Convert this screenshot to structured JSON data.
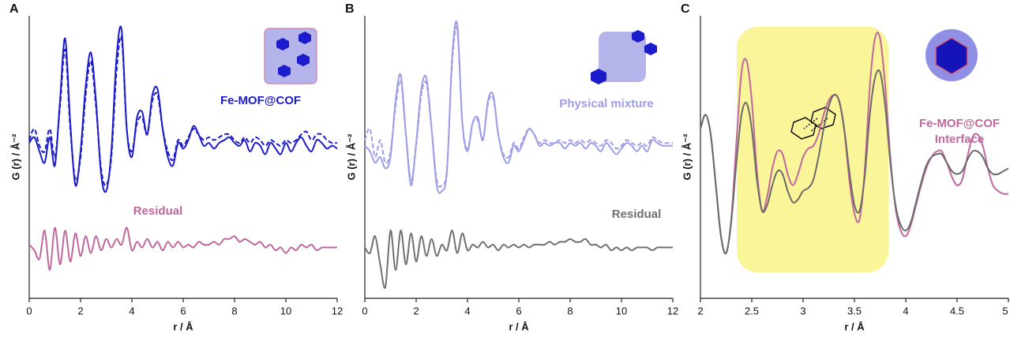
{
  "chart_data": [
    {
      "type": "line",
      "panel": "A",
      "ylabel": "G (r) / Å⁻²",
      "xlabel": "r / Å",
      "xlim": [
        0,
        12
      ],
      "xticks": [
        0,
        2,
        4,
        6,
        8,
        10,
        12
      ],
      "ylim": [
        0,
        100
      ],
      "x": [
        0,
        0.2,
        0.4,
        0.6,
        0.8,
        1,
        1.2,
        1.4,
        1.6,
        1.8,
        2,
        2.2,
        2.4,
        2.6,
        2.8,
        3,
        3.2,
        3.4,
        3.6,
        3.8,
        4,
        4.2,
        4.4,
        4.6,
        4.8,
        5,
        5.2,
        5.4,
        5.6,
        5.8,
        6,
        6.2,
        6.4,
        6.6,
        6.8,
        7,
        7.2,
        7.4,
        7.6,
        7.8,
        8,
        8.2,
        8.4,
        8.6,
        8.8,
        9,
        9.2,
        9.4,
        9.6,
        9.8,
        10,
        10.2,
        10.4,
        10.6,
        10.8,
        11,
        11.2,
        11.4,
        11.6,
        11.8,
        12
      ],
      "series": [
        {
          "name": "Fe-MOF@COF",
          "color": "#1c1ccc",
          "dash": false,
          "values": [
            55,
            57,
            52,
            48,
            57,
            47,
            70,
            92,
            62,
            40,
            52,
            75,
            87,
            70,
            44,
            38,
            52,
            85,
            95,
            60,
            50,
            64,
            66,
            58,
            72,
            74,
            60,
            50,
            47,
            55,
            53,
            56,
            61,
            58,
            54,
            55,
            53,
            55,
            56,
            57,
            55,
            54,
            56,
            52,
            55,
            54,
            51,
            55,
            53,
            51,
            55,
            52,
            55,
            57,
            54,
            52,
            56,
            55,
            53,
            54,
            53
          ]
        },
        {
          "color": "#1c1ccc",
          "dash": true,
          "values": [
            56,
            60,
            54,
            52,
            60,
            50,
            68,
            88,
            60,
            42,
            50,
            72,
            84,
            68,
            46,
            40,
            50,
            80,
            92,
            60,
            52,
            62,
            64,
            58,
            70,
            72,
            60,
            52,
            49,
            56,
            54,
            57,
            60,
            58,
            56,
            57,
            56,
            57,
            58,
            58,
            56,
            55,
            57,
            55,
            57,
            56,
            54,
            56,
            55,
            54,
            56,
            55,
            56,
            58,
            59,
            56,
            58,
            58,
            56,
            55,
            55
          ]
        },
        {
          "name": "Residual",
          "color": "#c0679d",
          "dash": false,
          "values": [
            19,
            17,
            14,
            24,
            10,
            25,
            12,
            24,
            13,
            23,
            15,
            22,
            16,
            22,
            17,
            21,
            18,
            21,
            19,
            25,
            17,
            20,
            18,
            21,
            18,
            20,
            17,
            20,
            18,
            20,
            18,
            19,
            18,
            20,
            19,
            19,
            20,
            19,
            21,
            21,
            22,
            20,
            21,
            20,
            19,
            20,
            18,
            19,
            17,
            18,
            16,
            18,
            17,
            19,
            18,
            19,
            17,
            18,
            18,
            18,
            18
          ]
        }
      ]
    },
    {
      "type": "line",
      "panel": "B",
      "ylabel": "G (r) / Å⁻²",
      "xlabel": "r / Å",
      "xlim": [
        0,
        12
      ],
      "xticks": [
        0,
        2,
        4,
        6,
        8,
        10,
        12
      ],
      "ylim": [
        0,
        100
      ],
      "x": [
        0,
        0.2,
        0.4,
        0.6,
        0.8,
        1,
        1.2,
        1.4,
        1.6,
        1.8,
        2,
        2.2,
        2.4,
        2.6,
        2.8,
        3,
        3.2,
        3.4,
        3.6,
        3.8,
        4,
        4.2,
        4.4,
        4.6,
        4.8,
        5,
        5.2,
        5.4,
        5.6,
        5.8,
        6,
        6.2,
        6.4,
        6.6,
        6.8,
        7,
        7.2,
        7.4,
        7.6,
        7.8,
        8,
        8.2,
        8.4,
        8.6,
        8.8,
        9,
        9.2,
        9.4,
        9.6,
        9.8,
        10,
        10.2,
        10.4,
        10.6,
        10.8,
        11,
        11.2,
        11.4,
        11.6,
        11.8,
        12
      ],
      "series": [
        {
          "name": "Physical mixture",
          "color": "#9d9de8",
          "dash": false,
          "values": [
            54,
            52,
            48,
            50,
            46,
            50,
            70,
            79,
            58,
            40,
            55,
            74,
            78,
            60,
            40,
            38,
            45,
            85,
            97,
            62,
            52,
            62,
            64,
            56,
            70,
            72,
            58,
            50,
            48,
            54,
            52,
            56,
            60,
            58,
            54,
            55,
            54,
            55,
            55,
            53,
            55,
            54,
            55,
            53,
            55,
            54,
            52,
            55,
            53,
            51,
            53,
            55,
            54,
            52,
            54,
            52,
            56,
            55,
            54,
            54,
            54
          ]
        },
        {
          "color": "#9d9de8",
          "dash": true,
          "values": [
            56,
            60,
            50,
            56,
            48,
            52,
            68,
            77,
            58,
            42,
            54,
            72,
            76,
            60,
            42,
            40,
            46,
            83,
            95,
            62,
            53,
            62,
            63,
            56,
            69,
            71,
            58,
            51,
            50,
            55,
            53,
            57,
            60,
            58,
            55,
            56,
            55,
            55,
            56,
            55,
            56,
            55,
            56,
            55,
            56,
            55,
            54,
            56,
            55,
            53,
            54,
            56,
            55,
            54,
            55,
            54,
            57,
            56,
            55,
            55,
            55
          ]
        },
        {
          "name": "Residual",
          "color": "#707070",
          "dash": false,
          "values": [
            18,
            16,
            22,
            12,
            4,
            24,
            10,
            24,
            12,
            23,
            13,
            22,
            15,
            21,
            15,
            19,
            17,
            24,
            16,
            23,
            17,
            19,
            18,
            20,
            18,
            19,
            17,
            19,
            18,
            19,
            18,
            19,
            18,
            19,
            19,
            19,
            20,
            19,
            20,
            20,
            21,
            20,
            20,
            21,
            19,
            19,
            18,
            19,
            17,
            18,
            17,
            18,
            17,
            18,
            18,
            18,
            17,
            18,
            18,
            18,
            18
          ]
        }
      ]
    },
    {
      "type": "line",
      "panel": "C",
      "ylabel": "G (r) / Å⁻²",
      "xlabel": "r / Å",
      "label_lines": [
        "Fe-MOF@COF",
        "Interface"
      ],
      "xlim": [
        2,
        5
      ],
      "xticks": [
        2,
        2.5,
        3,
        3.5,
        4,
        4.5,
        5
      ],
      "ylim": [
        0,
        100
      ],
      "x": [
        2,
        2.05,
        2.1,
        2.15,
        2.2,
        2.25,
        2.3,
        2.35,
        2.4,
        2.45,
        2.5,
        2.55,
        2.6,
        2.65,
        2.7,
        2.75,
        2.8,
        2.85,
        2.9,
        2.95,
        3,
        3.05,
        3.1,
        3.15,
        3.2,
        3.25,
        3.3,
        3.35,
        3.4,
        3.45,
        3.5,
        3.55,
        3.6,
        3.65,
        3.7,
        3.75,
        3.8,
        3.85,
        3.9,
        3.95,
        4,
        4.05,
        4.1,
        4.15,
        4.2,
        4.25,
        4.3,
        4.35,
        4.4,
        4.45,
        4.5,
        4.55,
        4.6,
        4.65,
        4.7,
        4.75,
        4.8,
        4.85,
        4.9,
        4.95,
        5
      ],
      "series": [
        {
          "color": "#c0679d",
          "dash": false,
          "values": [
            60,
            65,
            58,
            40,
            22,
            16,
            28,
            55,
            80,
            84,
            70,
            45,
            31,
            36,
            46,
            52,
            51,
            44,
            40,
            44,
            50,
            53,
            54,
            58,
            65,
            70,
            72,
            70,
            60,
            42,
            30,
            28,
            45,
            75,
            92,
            92,
            75,
            50,
            32,
            24,
            22,
            26,
            33,
            40,
            46,
            50,
            52,
            52,
            48,
            43,
            40,
            42,
            50,
            57,
            58,
            54,
            46,
            40,
            38,
            37,
            37
          ]
        },
        {
          "color": "#6a6a6a",
          "dash": false,
          "values": [
            60,
            65,
            58,
            40,
            22,
            16,
            27,
            48,
            65,
            69,
            60,
            42,
            31,
            33,
            40,
            45,
            44,
            38,
            34,
            35,
            38,
            39,
            42,
            50,
            60,
            68,
            72,
            70,
            60,
            45,
            33,
            31,
            43,
            65,
            78,
            80,
            68,
            48,
            33,
            26,
            24,
            27,
            34,
            41,
            47,
            50,
            51,
            51,
            48,
            45,
            44,
            45,
            49,
            52,
            52,
            50,
            46,
            44,
            44,
            45,
            46
          ]
        }
      ]
    }
  ]
}
